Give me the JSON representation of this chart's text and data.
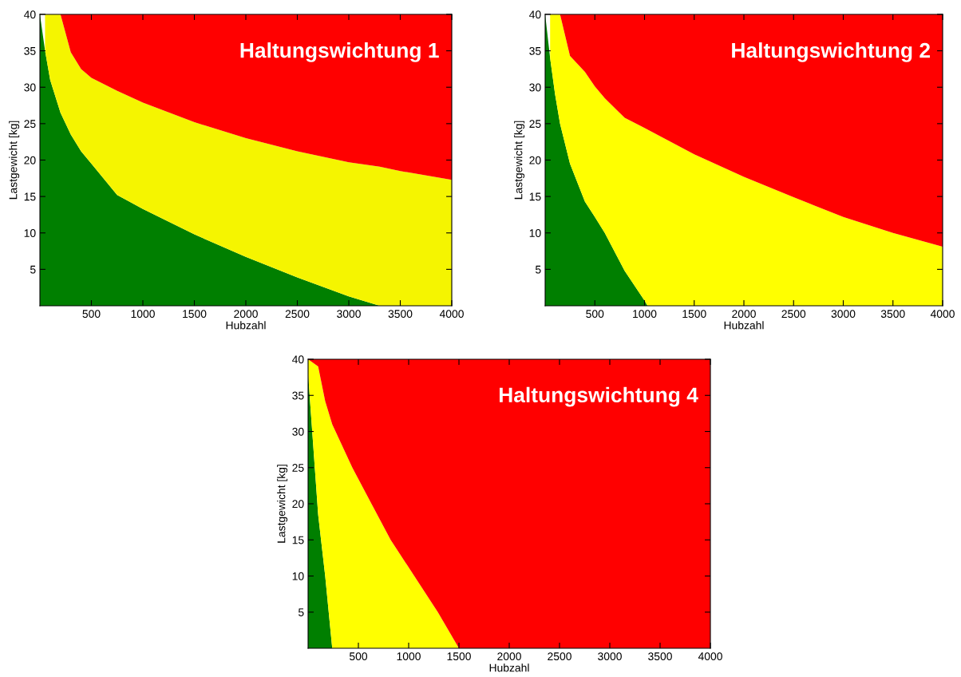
{
  "chart_data": [
    {
      "type": "area",
      "stacked": true,
      "title": "Haltungswichtung 1",
      "xlabel": "Hubzahl",
      "ylabel": "Lastgewicht [kg]",
      "x": [
        0,
        50,
        100,
        200,
        300,
        400,
        500,
        750,
        1000,
        1500,
        2000,
        2500,
        3000,
        3300,
        3500,
        4000
      ],
      "series": [
        {
          "color": "#007f00",
          "values": [
            40,
            35,
            31,
            26.5,
            23.5,
            21.2,
            19.5,
            15.2,
            13.3,
            9.8,
            6.7,
            3.9,
            1.3,
            0,
            0,
            0
          ]
        },
        {
          "color": "#f5f500",
          "values": [
            null,
            5,
            9,
            13.5,
            11.3,
            11.3,
            11.8,
            14.3,
            14.6,
            15.4,
            16.3,
            17.3,
            18.4,
            19.1,
            18.5,
            17.3
          ]
        },
        {
          "color": "#ff0000",
          "values": [
            null,
            null,
            null,
            0,
            5.2,
            7.5,
            8.7,
            10.5,
            12.1,
            14.8,
            17,
            18.8,
            20.3,
            20.9,
            21.5,
            22.7
          ]
        }
      ],
      "xlim": [
        0,
        4000
      ],
      "ylim": [
        0,
        40
      ],
      "xticks": [
        500,
        1000,
        1500,
        2000,
        2500,
        3000,
        3500,
        4000
      ],
      "yticks": [
        5,
        10,
        15,
        20,
        25,
        30,
        35,
        40
      ],
      "grid": false,
      "legend": false
    },
    {
      "type": "area",
      "stacked": true,
      "title": "Haltungswichtung 2",
      "xlabel": "Hubzahl",
      "ylabel": "Lastgewicht [kg]",
      "x": [
        0,
        50,
        100,
        150,
        250,
        400,
        500,
        600,
        800,
        1000,
        1030,
        1500,
        2000,
        2500,
        3000,
        3500,
        4000
      ],
      "series": [
        {
          "color": "#007f00",
          "values": [
            40,
            34,
            29,
            25,
            19.5,
            14.3,
            12.2,
            10,
            4.8,
            0.7,
            0,
            0,
            0,
            0,
            0,
            0,
            0
          ]
        },
        {
          "color": "#ffff00",
          "values": [
            null,
            6,
            11,
            15,
            14.8,
            17.8,
            17.9,
            18.5,
            21,
            23.7,
            24.2,
            20.8,
            17.7,
            14.9,
            12.2,
            10,
            8.1
          ]
        },
        {
          "color": "#ff0000",
          "values": [
            null,
            null,
            null,
            0,
            5.7,
            7.9,
            9.9,
            11.5,
            14.2,
            15.6,
            15.8,
            19.2,
            22.3,
            25.1,
            27.8,
            30,
            31.9
          ]
        }
      ],
      "xlim": [
        0,
        4000
      ],
      "ylim": [
        0,
        40
      ],
      "xticks": [
        500,
        1000,
        1500,
        2000,
        2500,
        3000,
        3500,
        4000
      ],
      "yticks": [
        5,
        10,
        15,
        20,
        25,
        30,
        35,
        40
      ],
      "grid": false,
      "legend": false
    },
    {
      "type": "area",
      "stacked": true,
      "title": "Haltungswichtung 4",
      "xlabel": "Hubzahl",
      "ylabel": "Lastgewicht [kg]",
      "x": [
        0,
        100,
        170,
        240,
        440,
        630,
        821,
        1056,
        1290,
        1500,
        2000,
        2500,
        3000,
        3500,
        4000
      ],
      "series": [
        {
          "color": "#007f00",
          "values": [
            38,
            18.5,
            10,
            0,
            null,
            null,
            null,
            null,
            null,
            null,
            null,
            null,
            null,
            null,
            null
          ]
        },
        {
          "color": "#ffff00",
          "values": [
            2,
            20.5,
            24.2,
            31,
            25,
            20,
            15,
            10,
            5,
            0,
            null,
            null,
            null,
            null,
            null
          ]
        },
        {
          "color": "#ff0000",
          "values": [
            0,
            1,
            5.8,
            9,
            15,
            20,
            25,
            30,
            35,
            40,
            40,
            40,
            40,
            40,
            40
          ]
        }
      ],
      "xlim": [
        0,
        4000
      ],
      "ylim": [
        0,
        40
      ],
      "xticks": [
        500,
        1000,
        1500,
        2000,
        2500,
        3000,
        3500,
        4000
      ],
      "yticks": [
        5,
        10,
        15,
        20,
        25,
        30,
        35,
        40
      ],
      "grid": false,
      "legend": false
    }
  ]
}
